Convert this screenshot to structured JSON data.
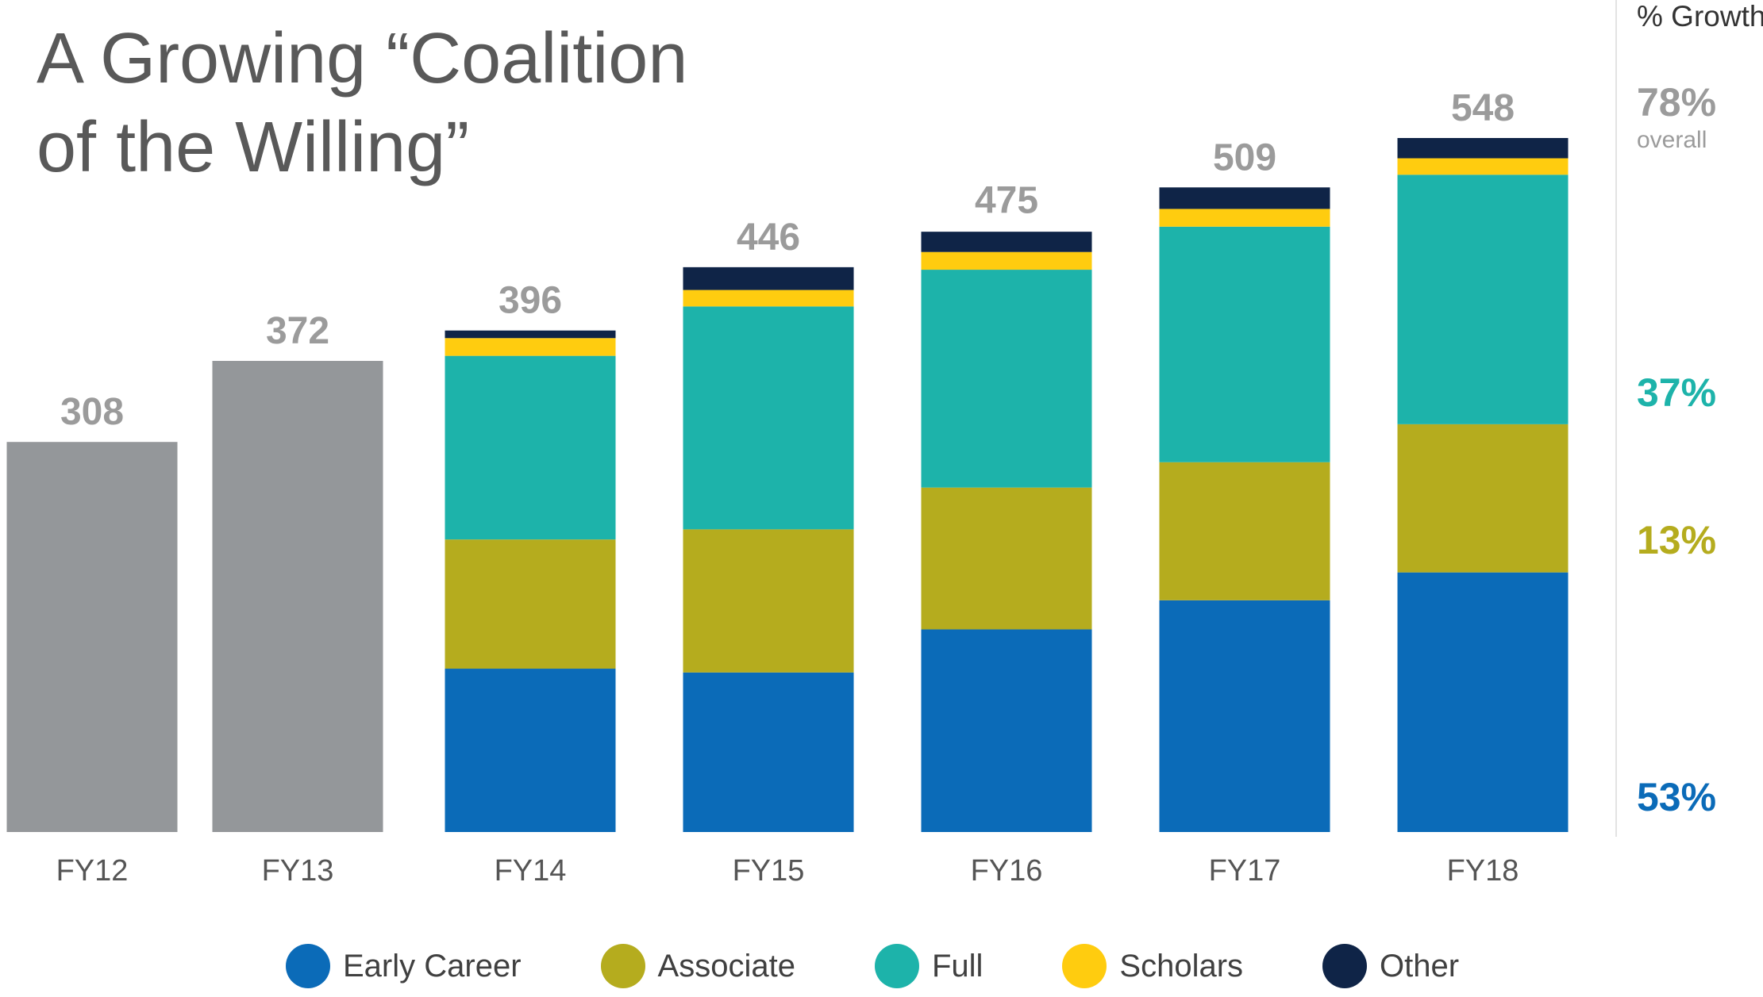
{
  "title": {
    "line1": "A Growing “Coalition",
    "line2": "of the Willing”"
  },
  "colors": {
    "early_career": "#0b6bb8",
    "associate": "#b5ac1e",
    "full": "#1db3aa",
    "scholars": "#ffcc0f",
    "other": "#0f2447",
    "total": "#94979a",
    "label": "#9b9b9b",
    "axis_label": "#555555"
  },
  "growth": {
    "header": "% Growth",
    "overall_value": "78%",
    "overall_label": "overall",
    "full": "37%",
    "associate": "13%",
    "early_career": "53%"
  },
  "chart_data": {
    "type": "bar",
    "categories": [
      "FY12",
      "FY13",
      "FY14",
      "FY15",
      "FY16",
      "FY17",
      "FY18"
    ],
    "totals": [
      308,
      372,
      396,
      446,
      475,
      509,
      548
    ],
    "series": [
      {
        "name": "Early Career",
        "values": [
          null,
          null,
          129,
          126,
          160,
          183,
          205
        ]
      },
      {
        "name": "Associate",
        "values": [
          null,
          null,
          102,
          113,
          112,
          109,
          117
        ]
      },
      {
        "name": "Full",
        "values": [
          null,
          null,
          145,
          176,
          172,
          186,
          197
        ]
      },
      {
        "name": "Scholars",
        "values": [
          null,
          null,
          14,
          13,
          14,
          14,
          13
        ]
      },
      {
        "name": "Other",
        "values": [
          null,
          null,
          6,
          18,
          16,
          17,
          16
        ]
      }
    ],
    "ylim": [
      0,
      560
    ],
    "legend_position": "bottom"
  },
  "legend": [
    {
      "label": "Early Career",
      "color": "#0b6bb8"
    },
    {
      "label": "Associate",
      "color": "#b5ac1e"
    },
    {
      "label": "Full",
      "color": "#1db3aa"
    },
    {
      "label": "Scholars",
      "color": "#ffcc0f"
    },
    {
      "label": "Other",
      "color": "#0f2447"
    }
  ]
}
